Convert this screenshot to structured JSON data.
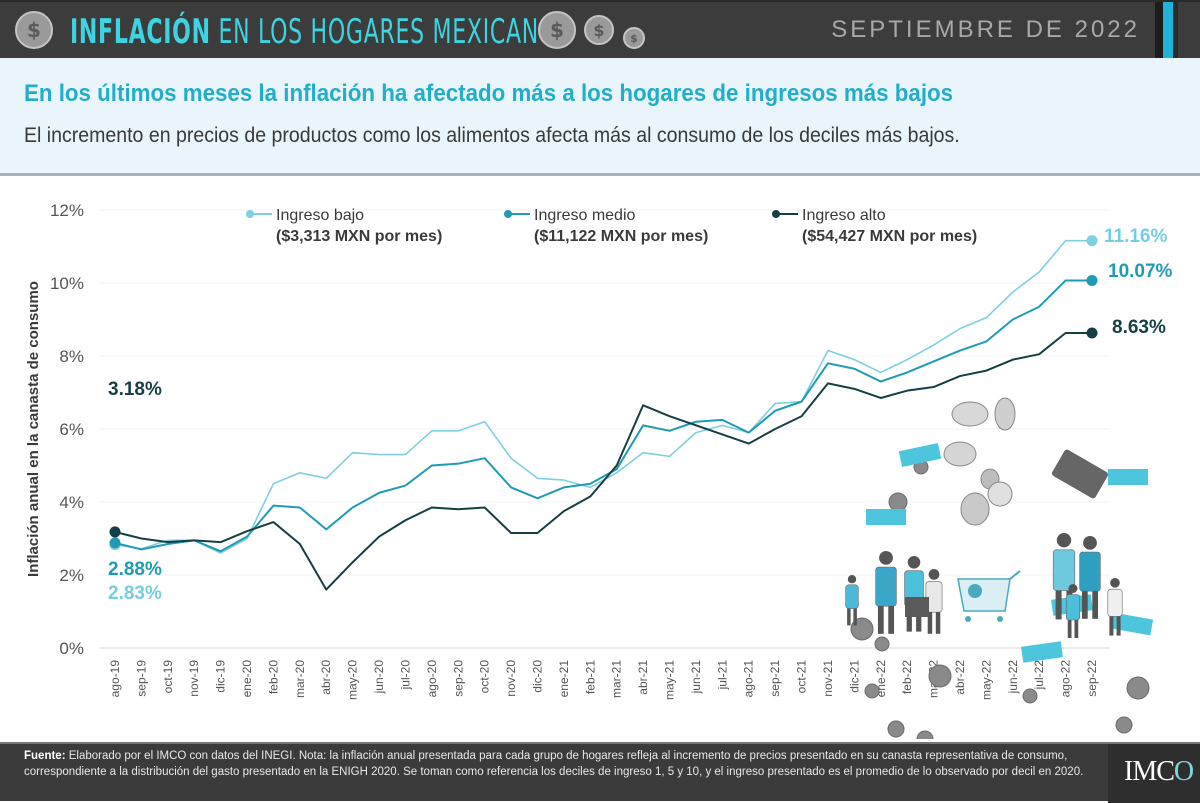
{
  "header": {
    "title_bold": "INFLACIÓN",
    "title_rest": "EN LOS HOGARES MEXICANOS",
    "date": "SEPTIEMBRE DE 2022",
    "coin_symbol": "$"
  },
  "subheader": {
    "headline": "En los últimos meses la inflación ha afectado más a los hogares de ingresos más bajos",
    "subline": "El incremento en precios de productos como los alimentos afecta más al consumo de los deciles más bajos."
  },
  "colors": {
    "bajo": "#7fcfe0",
    "medio": "#1f9bb3",
    "alto": "#163f45",
    "accent": "#3dd3e0"
  },
  "chart_data": {
    "type": "line",
    "title": "",
    "xlabel": "",
    "ylabel": "Inflación anual en la canasta de consumo",
    "ylim": [
      0,
      12
    ],
    "yticks": [
      0,
      2,
      4,
      6,
      8,
      10,
      12
    ],
    "ytick_labels": [
      "0%",
      "2%",
      "4%",
      "6%",
      "8%",
      "10%",
      "12%"
    ],
    "grid": true,
    "legend_position": "top",
    "x": [
      "ago-19",
      "sep-19",
      "oct-19",
      "nov-19",
      "dic-19",
      "ene-20",
      "feb-20",
      "mar-20",
      "abr-20",
      "may-20",
      "jun-20",
      "jul-20",
      "ago-20",
      "sep-20",
      "oct-20",
      "nov-20",
      "dic-20",
      "ene-21",
      "feb-21",
      "mar-21",
      "abr-21",
      "may-21",
      "jun-21",
      "jul-21",
      "ago-21",
      "sep-21",
      "oct-21",
      "nov-21",
      "dic-21",
      "ene-22",
      "feb-22",
      "mar-22",
      "abr-22",
      "may-22",
      "jun-22",
      "jul-22",
      "ago-22",
      "sep-22"
    ],
    "series": [
      {
        "key": "bajo",
        "name": "Ingreso bajo",
        "subtitle": "($3,313 MXN por mes)",
        "values": [
          2.83,
          2.72,
          2.95,
          2.95,
          2.6,
          3.0,
          4.5,
          4.8,
          4.65,
          5.35,
          5.3,
          5.3,
          5.95,
          5.95,
          6.2,
          5.2,
          4.65,
          4.6,
          4.4,
          4.8,
          5.35,
          5.25,
          5.9,
          6.1,
          5.9,
          6.7,
          6.75,
          8.15,
          7.9,
          7.55,
          7.9,
          8.3,
          8.75,
          9.05,
          9.75,
          10.3,
          11.16,
          11.16
        ],
        "start_label": "2.83%",
        "end_label": "11.16%"
      },
      {
        "key": "medio",
        "name": "Ingreso medio",
        "subtitle": "($11,122 MXN por mes)",
        "values": [
          2.88,
          2.7,
          2.85,
          2.95,
          2.65,
          3.05,
          3.9,
          3.85,
          3.25,
          3.85,
          4.25,
          4.45,
          5.0,
          5.05,
          5.2,
          4.4,
          4.1,
          4.4,
          4.5,
          4.9,
          6.1,
          5.95,
          6.2,
          6.25,
          5.9,
          6.5,
          6.75,
          7.8,
          7.65,
          7.3,
          7.55,
          7.85,
          8.15,
          8.4,
          9.0,
          9.35,
          10.07,
          10.07
        ],
        "start_label": "2.88%",
        "end_label": "10.07%"
      },
      {
        "key": "alto",
        "name": "Ingreso alto",
        "subtitle": "($54,427 MXN por mes)",
        "values": [
          3.18,
          3.0,
          2.9,
          2.95,
          2.9,
          3.2,
          3.45,
          2.85,
          1.6,
          2.35,
          3.05,
          3.5,
          3.85,
          3.8,
          3.85,
          3.15,
          3.15,
          3.75,
          4.15,
          5.0,
          6.65,
          6.35,
          6.1,
          5.85,
          5.6,
          6.0,
          6.35,
          7.25,
          7.1,
          6.85,
          7.05,
          7.15,
          7.45,
          7.6,
          7.9,
          8.05,
          8.63,
          8.63
        ],
        "start_label": "3.18%",
        "end_label": "8.63%"
      }
    ]
  },
  "footer": {
    "source_label": "Fuente:",
    "source_text": " Elaborado por el IMCO con datos del INEGI. Nota: la inflación anual presentada para cada grupo de hogares refleja al incremento de precios presentado en su canasta representativa de consumo, correspondiente a la distribución del gasto presentado en la ENIGH 2020. Se toman como referencia los deciles de ingreso 1, 5 y 10, y el ingreso presentado es el promedio de lo observado por decil en 2020.",
    "logo_text": "IMC",
    "logo_tail": "O"
  }
}
